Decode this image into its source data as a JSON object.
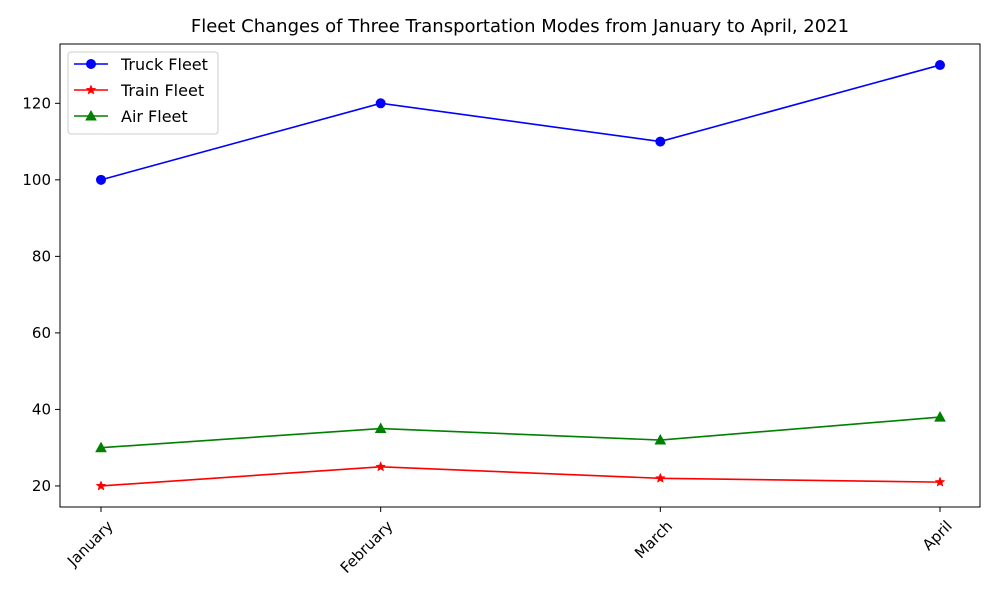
{
  "chart_data": {
    "type": "line",
    "title": "Fleet Changes of Three Transportation Modes from January to April, 2021",
    "xlabel": "",
    "ylabel": "",
    "categories": [
      "January",
      "February",
      "March",
      "April"
    ],
    "ylim": [
      14.5,
      135.5
    ],
    "yticks": [
      20,
      40,
      60,
      80,
      100,
      120
    ],
    "grid": false,
    "legend_position": "top-left",
    "series": [
      {
        "name": "Truck Fleet",
        "values": [
          100,
          120,
          110,
          130
        ],
        "color": "#0000ff",
        "marker": "circle"
      },
      {
        "name": "Train Fleet",
        "values": [
          20,
          25,
          22,
          21
        ],
        "color": "#ff0000",
        "marker": "star"
      },
      {
        "name": "Air Fleet",
        "values": [
          30,
          35,
          32,
          38
        ],
        "color": "#008000",
        "marker": "triangle"
      }
    ]
  }
}
